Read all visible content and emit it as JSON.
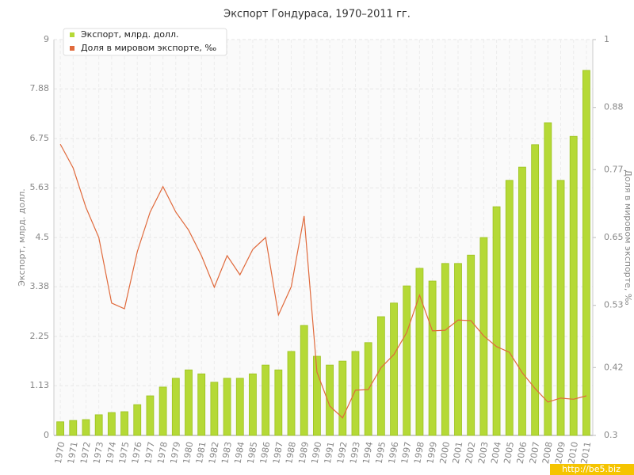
{
  "chart_data": {
    "type": "bar-line",
    "title": "Экспорт Гондураса, 1970–2011 гг.",
    "y_label": "Экспорт, млрд. долл.",
    "y2_label": "Доля в мировом экспорте, ‰",
    "watermark": "http://be5.biz",
    "categories": [
      "1970",
      "1971",
      "1972",
      "1973",
      "1974",
      "1975",
      "1976",
      "1977",
      "1978",
      "1979",
      "1980",
      "1981",
      "1982",
      "1983",
      "1984",
      "1985",
      "1986",
      "1987",
      "1988",
      "1989",
      "1990",
      "1991",
      "1992",
      "1993",
      "1994",
      "1995",
      "1996",
      "1997",
      "1998",
      "1999",
      "2000",
      "2001",
      "2002",
      "2003",
      "2004",
      "2005",
      "2006",
      "2007",
      "2008",
      "2009",
      "2010",
      "2011"
    ],
    "series": [
      {
        "name": "Экспорт, млрд. долл.",
        "color": "#b5d936",
        "kind": "bar",
        "values": [
          0.31,
          0.34,
          0.36,
          0.47,
          0.52,
          0.54,
          0.7,
          0.9,
          1.1,
          1.3,
          1.49,
          1.4,
          1.21,
          1.3,
          1.3,
          1.4,
          1.6,
          1.49,
          1.91,
          2.5,
          1.8,
          1.6,
          1.69,
          1.91,
          2.11,
          2.7,
          3.01,
          3.4,
          3.8,
          3.51,
          3.91,
          3.91,
          4.1,
          4.5,
          5.2,
          5.8,
          6.1,
          6.61,
          7.11,
          5.8,
          6.8,
          8.3
        ]
      },
      {
        "name": "Доля в мировом экспорте, ‰",
        "color": "#e06a3c",
        "kind": "line",
        "axis": "y2",
        "values": [
          0.815,
          0.773,
          0.703,
          0.65,
          0.534,
          0.524,
          0.625,
          0.695,
          0.74,
          0.695,
          0.663,
          0.618,
          0.562,
          0.618,
          0.584,
          0.629,
          0.65,
          0.513,
          0.563,
          0.688,
          0.412,
          0.352,
          0.331,
          0.38,
          0.381,
          0.42,
          0.443,
          0.482,
          0.548,
          0.485,
          0.486,
          0.504,
          0.503,
          0.476,
          0.457,
          0.447,
          0.411,
          0.383,
          0.359,
          0.366,
          0.364,
          0.37
        ]
      }
    ],
    "ylim": [
      0,
      9
    ],
    "yticks": [
      0,
      1.13,
      2.25,
      3.38,
      4.5,
      5.63,
      6.75,
      7.88,
      9
    ],
    "y2lim": [
      0.3,
      1
    ],
    "y2ticks": [
      0.3,
      0.42,
      0.53,
      0.65,
      0.77,
      0.88,
      1
    ],
    "grid": true,
    "legend": "top-left"
  }
}
